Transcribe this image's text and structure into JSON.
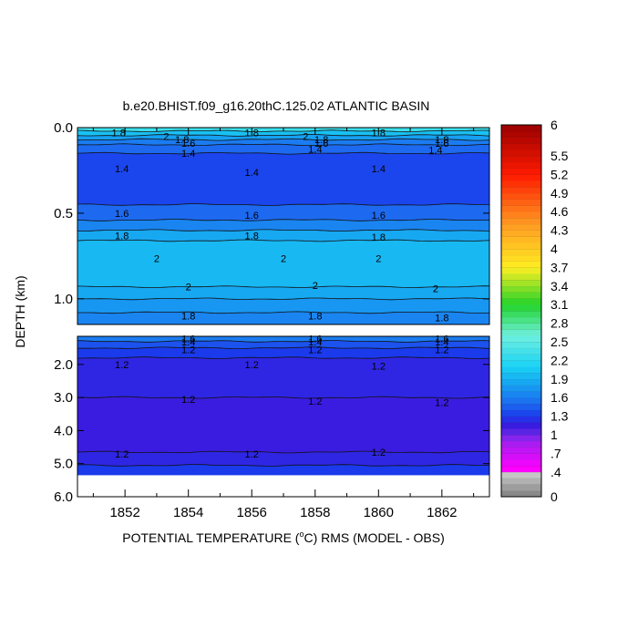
{
  "chart_data": {
    "type": "contour",
    "title": "b.e20.BHIST.f09_g16.20thC.125.02 ATLANTIC BASIN",
    "xlabel_prefix": "POTENTIAL TEMPERATURE (",
    "xlabel_unit_sup": "o",
    "xlabel_suffix": "C) RMS (MODEL - OBS)",
    "ylabel": "DEPTH (km)",
    "x_range": [
      1850.5,
      1863.5
    ],
    "x_ticks": [
      1852,
      1854,
      1856,
      1858,
      1860,
      1862
    ],
    "x_tick_labels": [
      "1852",
      "1854",
      "1856",
      "1858",
      "1860",
      "1862"
    ],
    "upper_panel": {
      "depth_range_km": [
        0.0,
        1.15
      ],
      "y_ticks": [
        0.0,
        0.5,
        1.0
      ],
      "y_tick_labels": [
        "0.0",
        "0.5",
        "1.0"
      ]
    },
    "lower_panel": {
      "depth_range_km": [
        1.15,
        6.0
      ],
      "data_bottom_km": 5.35,
      "y_ticks": [
        2.0,
        3.0,
        4.0,
        5.0,
        6.0
      ],
      "y_tick_labels": [
        "2.0",
        "3.0",
        "4.0",
        "5.0",
        "6.0"
      ]
    },
    "upper_layers": [
      {
        "top": 0.0,
        "value": 2.3
      },
      {
        "top": 0.02,
        "value": 2.0
      },
      {
        "top": 0.045,
        "value": 1.8
      },
      {
        "top": 0.07,
        "value": 1.6
      },
      {
        "top": 0.1,
        "value": 1.5
      },
      {
        "top": 0.15,
        "value": 1.35
      },
      {
        "top": 0.45,
        "value": 1.5
      },
      {
        "top": 0.54,
        "value": 1.65
      },
      {
        "top": 0.6,
        "value": 1.85
      },
      {
        "top": 0.66,
        "value": 1.95
      },
      {
        "top": 0.93,
        "value": 1.85
      },
      {
        "top": 1.0,
        "value": 1.75
      },
      {
        "top": 1.08,
        "value": 1.65
      }
    ],
    "lower_layers": [
      {
        "top": 1.15,
        "value": 1.6
      },
      {
        "top": 1.3,
        "value": 1.4
      },
      {
        "top": 1.5,
        "value": 1.3
      },
      {
        "top": 1.8,
        "value": 1.2
      },
      {
        "top": 3.0,
        "value": 1.15
      },
      {
        "top": 4.65,
        "value": 1.2
      },
      {
        "top": 5.05,
        "value": 1.3
      }
    ],
    "contour_labels": [
      {
        "year": 1851.8,
        "depth": 0.03,
        "text": "1.8"
      },
      {
        "year": 1853.3,
        "depth": 0.05,
        "text": "2"
      },
      {
        "year": 1853.8,
        "depth": 0.07,
        "text": "1.8"
      },
      {
        "year": 1854.0,
        "depth": 0.09,
        "text": "1.6"
      },
      {
        "year": 1856.0,
        "depth": 0.03,
        "text": "1.8"
      },
      {
        "year": 1857.7,
        "depth": 0.05,
        "text": "2"
      },
      {
        "year": 1858.2,
        "depth": 0.07,
        "text": "1.8"
      },
      {
        "year": 1858.2,
        "depth": 0.09,
        "text": "1.6"
      },
      {
        "year": 1858.0,
        "depth": 0.125,
        "text": "1.4"
      },
      {
        "year": 1860.0,
        "depth": 0.03,
        "text": "1.8"
      },
      {
        "year": 1862.0,
        "depth": 0.07,
        "text": "1.8"
      },
      {
        "year": 1862.0,
        "depth": 0.09,
        "text": "1.6"
      },
      {
        "year": 1861.8,
        "depth": 0.13,
        "text": "1.4"
      },
      {
        "year": 1854.0,
        "depth": 0.15,
        "text": "1.4"
      },
      {
        "year": 1851.9,
        "depth": 0.24,
        "text": "1.4"
      },
      {
        "year": 1856.0,
        "depth": 0.26,
        "text": "1.4"
      },
      {
        "year": 1860.0,
        "depth": 0.24,
        "text": "1.4"
      },
      {
        "year": 1851.9,
        "depth": 0.5,
        "text": "1.6"
      },
      {
        "year": 1856.0,
        "depth": 0.51,
        "text": "1.6"
      },
      {
        "year": 1860.0,
        "depth": 0.51,
        "text": "1.6"
      },
      {
        "year": 1851.9,
        "depth": 0.63,
        "text": "1.8"
      },
      {
        "year": 1856.0,
        "depth": 0.63,
        "text": "1.8"
      },
      {
        "year": 1860.0,
        "depth": 0.64,
        "text": "1.8"
      },
      {
        "year": 1853.0,
        "depth": 0.765,
        "text": "2"
      },
      {
        "year": 1857.0,
        "depth": 0.765,
        "text": "2"
      },
      {
        "year": 1860.0,
        "depth": 0.765,
        "text": "2"
      },
      {
        "year": 1854.0,
        "depth": 0.93,
        "text": "2"
      },
      {
        "year": 1858.0,
        "depth": 0.92,
        "text": "2"
      },
      {
        "year": 1861.8,
        "depth": 0.94,
        "text": "2"
      },
      {
        "year": 1854.0,
        "depth": 1.1,
        "text": "1.8"
      },
      {
        "year": 1858.0,
        "depth": 1.1,
        "text": "1.8"
      },
      {
        "year": 1862.0,
        "depth": 1.11,
        "text": "1.8"
      },
      {
        "year": 1854.0,
        "depth": 1.22,
        "text": "1.6"
      },
      {
        "year": 1858.0,
        "depth": 1.22,
        "text": "1.6"
      },
      {
        "year": 1862.0,
        "depth": 1.22,
        "text": "1.6"
      },
      {
        "year": 1854.0,
        "depth": 1.32,
        "text": "1.4"
      },
      {
        "year": 1858.0,
        "depth": 1.32,
        "text": "1.4"
      },
      {
        "year": 1862.0,
        "depth": 1.32,
        "text": "1.4"
      },
      {
        "year": 1854.0,
        "depth": 1.55,
        "text": "1.2"
      },
      {
        "year": 1858.0,
        "depth": 1.55,
        "text": "1.2"
      },
      {
        "year": 1862.0,
        "depth": 1.55,
        "text": "1.2"
      },
      {
        "year": 1851.9,
        "depth": 2.0,
        "text": "1.2"
      },
      {
        "year": 1856.0,
        "depth": 2.0,
        "text": "1.2"
      },
      {
        "year": 1860.0,
        "depth": 2.05,
        "text": "1.2"
      },
      {
        "year": 1854.0,
        "depth": 3.05,
        "text": "1.2"
      },
      {
        "year": 1858.0,
        "depth": 3.1,
        "text": "1.2"
      },
      {
        "year": 1862.0,
        "depth": 3.15,
        "text": "1.2"
      },
      {
        "year": 1851.9,
        "depth": 4.7,
        "text": "1.2"
      },
      {
        "year": 1856.0,
        "depth": 4.7,
        "text": "1.2"
      },
      {
        "year": 1860.0,
        "depth": 4.65,
        "text": "1.2"
      }
    ],
    "colorbar": {
      "min": 0,
      "max": 6,
      "step": 0.1,
      "tick_values": [
        6,
        5.5,
        5.2,
        4.9,
        4.6,
        4.3,
        4,
        3.7,
        3.4,
        3.1,
        2.8,
        2.5,
        2.2,
        1.9,
        1.6,
        1.3,
        1,
        0.7,
        0.4,
        0
      ],
      "tick_labels": [
        "6",
        "5.5",
        "5.2",
        "4.9",
        "4.6",
        "4.3",
        "4",
        "3.7",
        "3.4",
        "3.1",
        "2.8",
        "2.5",
        "2.2",
        "1.9",
        "1.6",
        "1.3",
        "1",
        ".7",
        ".4",
        "0"
      ]
    },
    "colors": {
      "grey_low": "#7f7f7f",
      "grey_high": "#cfcfcf",
      "magenta_low": "#ff00ff",
      "magenta_high": "#a020f0",
      "violet": "#6a28e8",
      "blue_deep": "#3a1ce0",
      "blue": "#1a3aec",
      "blue_mid": "#1d6af0",
      "sky": "#16a0f2",
      "cyan": "#1ad2f4",
      "aqua": "#6ff0e0",
      "green": "#22d42a",
      "yellow": "#ffee22",
      "orange": "#ff9a22",
      "red": "#ff1a00",
      "darkred": "#9a0000"
    }
  }
}
